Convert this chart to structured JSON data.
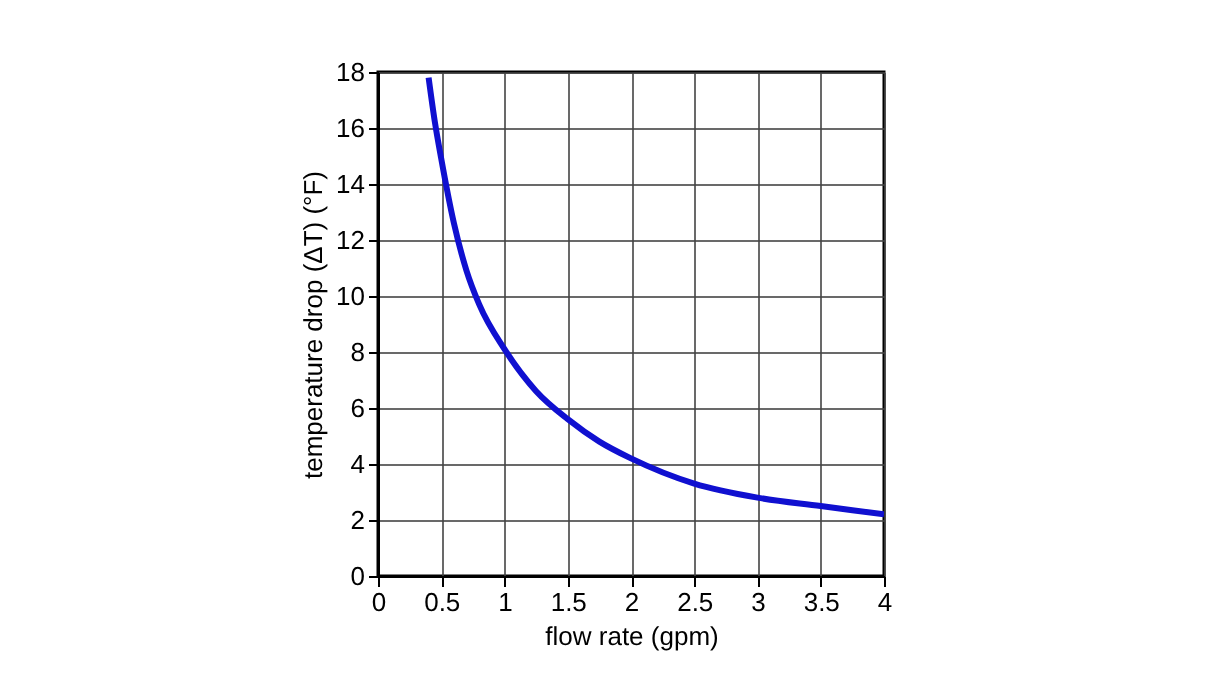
{
  "chart_data": {
    "type": "line",
    "xlabel": "flow rate (gpm)",
    "ylabel": "temperature drop (ΔT)  (°F)",
    "series": [
      {
        "color": "#1010d0",
        "x": [
          0.4,
          0.45,
          0.5,
          0.6,
          0.7,
          0.8,
          1,
          1.25,
          1.5,
          1.75,
          2,
          2.5,
          3,
          3.5,
          4
        ],
        "values": [
          17.8,
          16.2,
          14.9,
          12.6,
          10.9,
          9.7,
          8.1,
          6.6,
          5.6,
          4.8,
          4.2,
          3.3,
          2.8,
          2.5,
          2.2
        ]
      }
    ],
    "xlim": [
      0,
      4
    ],
    "xticks": [
      0,
      0.5,
      1,
      1.5,
      2,
      2.5,
      3,
      3.5,
      4
    ],
    "ylim": [
      0,
      18
    ],
    "yticks": [
      0,
      2,
      4,
      6,
      8,
      10,
      12,
      14,
      16,
      18
    ],
    "grid": true,
    "marker": "none",
    "line_style": "solid"
  }
}
